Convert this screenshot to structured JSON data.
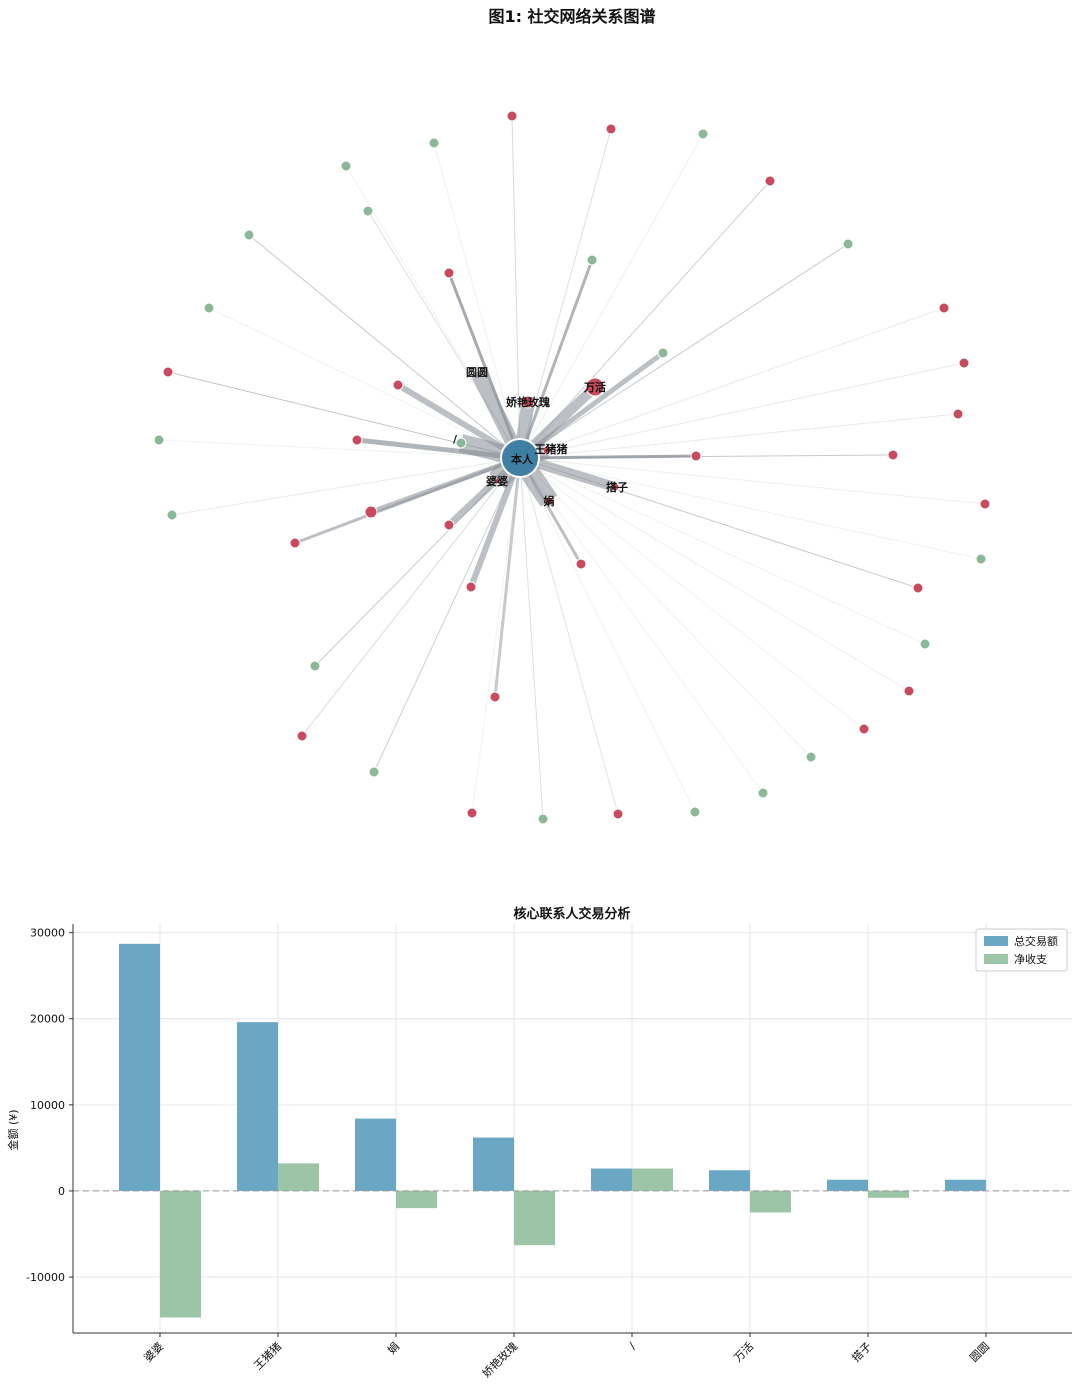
{
  "network": {
    "title": "图1: 社交网络关系图谱",
    "center": {
      "label": "本人",
      "color": "#3e7fa3"
    },
    "colors": {
      "expense_node": "#c94a5c",
      "income_node": "#8cb897",
      "edge": "#8f959c"
    },
    "labeled_contacts": [
      "圆圆",
      "娇艳玫瑰",
      "万活",
      "王猪猪",
      "婆婆",
      "娟",
      "搭子",
      "/"
    ]
  },
  "chart_data": {
    "type": "bar",
    "title": "核心联系人交易分析",
    "categories": [
      "婆婆",
      "王猪猪",
      "娟",
      "娇艳玫瑰",
      "/",
      "万活",
      "搭子",
      "圆圆"
    ],
    "series": [
      {
        "name": "总交易额",
        "color": "#6aa7c4",
        "values": [
          28700,
          19600,
          8400,
          6200,
          2600,
          2400,
          1300,
          1300
        ]
      },
      {
        "name": "净收支",
        "color": "#9bc5a6",
        "values": [
          -14700,
          3200,
          -2000,
          -6300,
          2600,
          -2500,
          -800,
          0
        ]
      }
    ],
    "xlabel": "",
    "ylabel": "金额 (¥)",
    "ylim": [
      -16500,
      31000
    ],
    "yticks": [
      -10000,
      0,
      10000,
      20000,
      30000
    ],
    "grid": true,
    "legend": "top-right"
  }
}
